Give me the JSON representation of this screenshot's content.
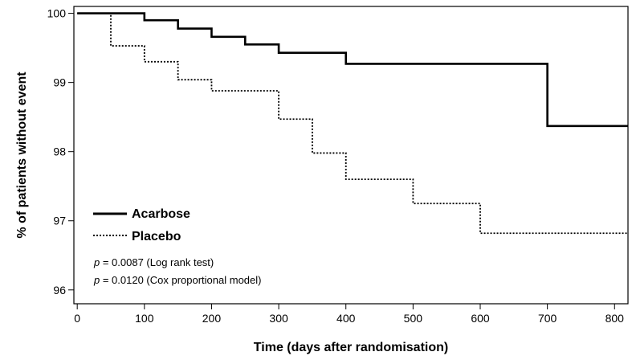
{
  "chart_data": {
    "type": "line",
    "subtype": "kaplan-meier-step",
    "xlabel": "Time (days after randomisation)",
    "ylabel": "% of patients without event",
    "xlim": [
      -5,
      820
    ],
    "ylim": [
      95.8,
      100.1
    ],
    "x_ticks": [
      0,
      100,
      200,
      300,
      400,
      500,
      600,
      700,
      800
    ],
    "x_tick_labels": [
      "0",
      "100",
      "200",
      "300",
      "400",
      "500",
      "600",
      "700",
      "800"
    ],
    "y_ticks": [
      96,
      97,
      98,
      99,
      100
    ],
    "y_tick_labels": [
      "96",
      "97",
      "98",
      "99",
      "100"
    ],
    "grid": false,
    "legend_position": "bottom-left",
    "series": [
      {
        "name": "Acarbose",
        "style": "solid",
        "color": "#000000",
        "x": [
          0,
          100,
          150,
          200,
          250,
          300,
          400,
          700,
          820
        ],
        "y": [
          100.0,
          99.9,
          99.78,
          99.66,
          99.55,
          99.43,
          99.27,
          98.37,
          98.37
        ]
      },
      {
        "name": "Placebo",
        "style": "dotted",
        "color": "#000000",
        "x": [
          0,
          50,
          100,
          150,
          200,
          300,
          350,
          400,
          500,
          600,
          820
        ],
        "y": [
          100.0,
          99.53,
          99.3,
          99.04,
          98.88,
          98.47,
          97.98,
          97.6,
          97.25,
          96.82,
          96.82
        ]
      }
    ],
    "annotations": [
      {
        "p_symbol": "p",
        "text": " = 0.0087 (Log rank test)"
      },
      {
        "p_symbol": "p",
        "text": " = 0.0120 (Cox proportional model)"
      }
    ]
  }
}
